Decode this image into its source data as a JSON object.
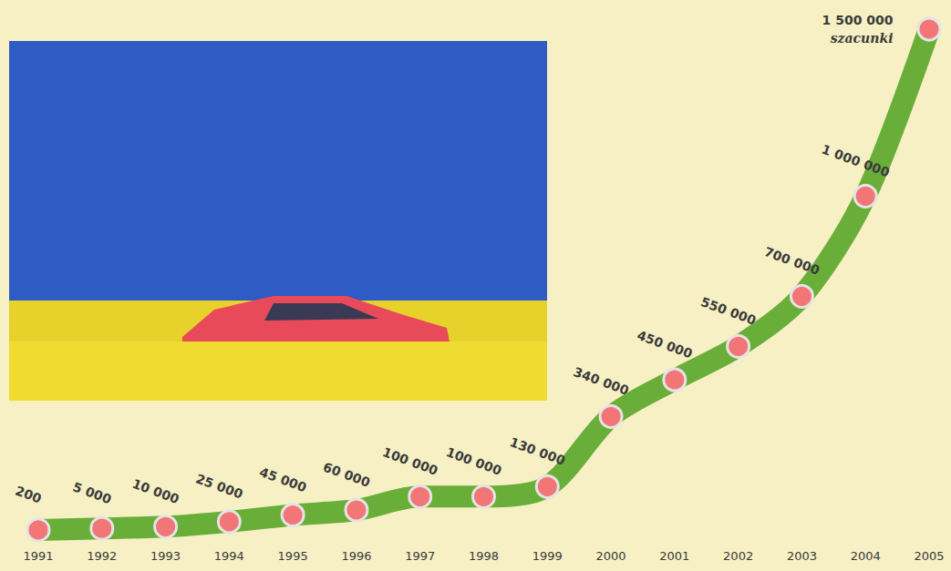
{
  "chart_data": {
    "type": "line",
    "categories": [
      "1991",
      "1992",
      "1993",
      "1994",
      "1995",
      "1996",
      "1997",
      "1998",
      "1999",
      "2000",
      "2001",
      "2002",
      "2003",
      "2004",
      "2005"
    ],
    "values": [
      200,
      5000,
      10000,
      25000,
      45000,
      60000,
      100000,
      100000,
      130000,
      340000,
      450000,
      550000,
      700000,
      1000000,
      1500000
    ],
    "value_labels": [
      "200",
      "5 000",
      "10 000",
      "25 000",
      "45 000",
      "60 000",
      "100 000",
      "100 000",
      "130 000",
      "340 000",
      "450 000",
      "550 000",
      "700 000",
      "1 000 000",
      "1 500 000"
    ],
    "annotation": "szacunki",
    "color": "#6aae3a",
    "marker": "circle",
    "line_style": "solid",
    "ylim": [
      0,
      1500000
    ],
    "grid": false,
    "data_labels": true,
    "tick_labels": "x"
  }
}
